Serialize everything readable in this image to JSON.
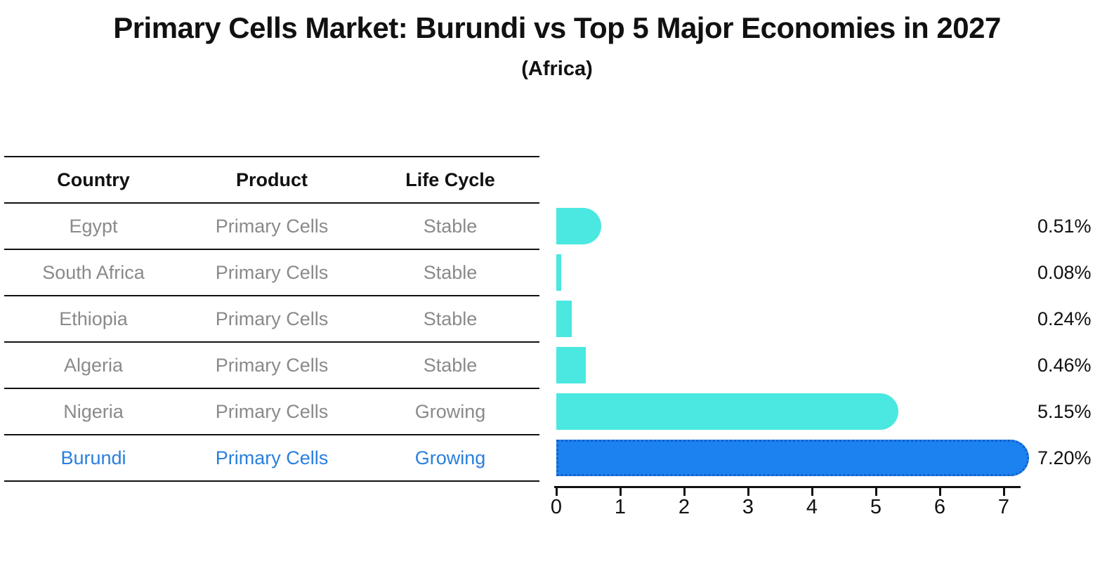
{
  "title": "Primary Cells Market: Burundi vs Top 5 Major Economies in 2027",
  "subtitle": "(Africa)",
  "table": {
    "headers": [
      "Country",
      "Product",
      "Life Cycle"
    ],
    "rows": [
      {
        "country": "Egypt",
        "product": "Primary Cells",
        "life_cycle": "Stable",
        "highlight": false
      },
      {
        "country": "South Africa",
        "product": "Primary Cells",
        "life_cycle": "Stable",
        "highlight": false
      },
      {
        "country": "Ethiopia",
        "product": "Primary Cells",
        "life_cycle": "Stable",
        "highlight": false
      },
      {
        "country": "Algeria",
        "product": "Primary Cells",
        "life_cycle": "Stable",
        "highlight": false
      },
      {
        "country": "Nigeria",
        "product": "Primary Cells",
        "life_cycle": "Growing",
        "highlight": false
      },
      {
        "country": "Burundi",
        "product": "Primary Cells",
        "life_cycle": "Growing",
        "highlight": true
      }
    ]
  },
  "chart_data": {
    "type": "bar",
    "orientation": "horizontal",
    "categories": [
      "Egypt",
      "South Africa",
      "Ethiopia",
      "Algeria",
      "Nigeria",
      "Burundi"
    ],
    "values": [
      0.51,
      0.08,
      0.24,
      0.46,
      5.15,
      7.2
    ],
    "value_labels": [
      "0.51%",
      "0.08%",
      "0.24%",
      "0.46%",
      "5.15%",
      "7.20%"
    ],
    "x_ticks": [
      "0",
      "1",
      "2",
      "3",
      "4",
      "5",
      "6",
      "7"
    ],
    "xlim": [
      0,
      7.3
    ],
    "grid": false,
    "legend": false,
    "bar_color": "#4AE8E0",
    "highlight_bar_color": "#1B82F0",
    "highlight_bar_border_color": "#1560C8",
    "highlight_index": 5
  },
  "colors": {
    "highlight_text": "#2A7FDE",
    "row_text": "#8a8a8a",
    "text": "#111111"
  }
}
